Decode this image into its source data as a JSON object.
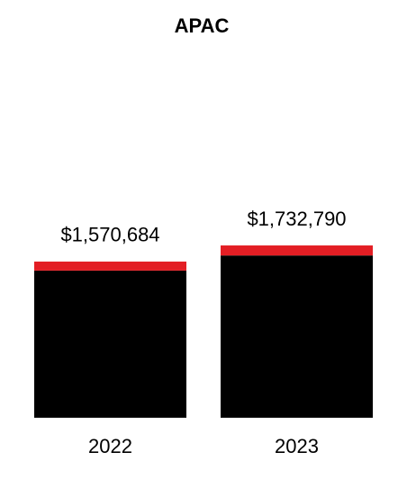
{
  "chart_data": {
    "type": "stacked-bar",
    "title": "APAC",
    "categories": [
      "2022",
      "2023"
    ],
    "series": [
      {
        "color": "#000000",
        "values": [
          1480000,
          1632000
        ]
      },
      {
        "color": "#e31e24",
        "values": [
          91000,
          101000
        ]
      }
    ],
    "totals": [
      1570684,
      1732790
    ],
    "total_labels": [
      "$1,570,684",
      "$1,732,790"
    ]
  }
}
